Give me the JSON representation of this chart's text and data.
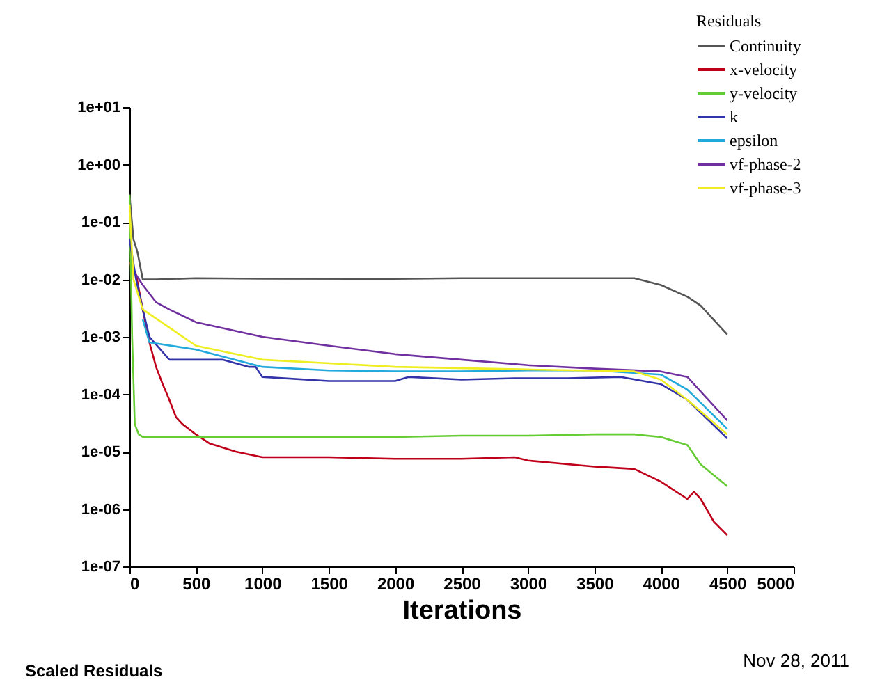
{
  "chart_data": {
    "type": "line",
    "xlabel": "Iterations",
    "legend_title": "Residuals",
    "legend": "top right",
    "log": "y",
    "grid": false,
    "line_style": "solid",
    "marker": "none",
    "xlim": [
      0,
      5000
    ],
    "xticks": [
      0,
      500,
      1000,
      1500,
      2000,
      2500,
      3000,
      3500,
      4000,
      4500,
      5000
    ],
    "ylim": [
      1e-07,
      10
    ],
    "yticks": [
      {
        "value": 10,
        "label": "1e+01"
      },
      {
        "value": 1,
        "label": "1e+00"
      },
      {
        "value": 0.1,
        "label": "1e-01"
      },
      {
        "value": 0.01,
        "label": "1e-02"
      },
      {
        "value": 0.001,
        "label": "1e-03"
      },
      {
        "value": 0.0001,
        "label": "1e-04"
      },
      {
        "value": 1e-05,
        "label": "1e-05"
      },
      {
        "value": 1e-06,
        "label": "1e-06"
      },
      {
        "value": 1e-07,
        "label": "1e-07"
      }
    ],
    "series": [
      {
        "name": "Continuity",
        "color": "#555555",
        "x": [
          0,
          30,
          60,
          100,
          200,
          500,
          1000,
          2000,
          2500,
          3000,
          3500,
          3800,
          4000,
          4200,
          4300,
          4500
        ],
        "values": [
          0.3,
          0.05,
          0.03,
          0.01,
          0.01,
          0.0105,
          0.0103,
          0.0102,
          0.0105,
          0.0105,
          0.0105,
          0.0105,
          0.008,
          0.005,
          0.0035,
          0.0011
        ]
      },
      {
        "name": "x-velocity",
        "color": "#c0001a",
        "x": [
          0,
          50,
          100,
          150,
          200,
          250,
          300,
          350,
          400,
          500,
          600,
          800,
          1000,
          1500,
          2000,
          2500,
          2900,
          3000,
          3500,
          3800,
          4000,
          4200,
          4250,
          4300,
          4400,
          4500
        ],
        "values": [
          0.02,
          0.012,
          0.003,
          0.0008,
          0.0003,
          0.00015,
          8e-05,
          4e-05,
          3e-05,
          2e-05,
          1.4e-05,
          1e-05,
          8e-06,
          8e-06,
          7.5e-06,
          7.5e-06,
          8e-06,
          7e-06,
          5.5e-06,
          5e-06,
          3e-06,
          1.5e-06,
          2e-06,
          1.5e-06,
          6e-07,
          3.5e-07
        ]
      },
      {
        "name": "y-velocity",
        "color": "#66cc33",
        "x": [
          0,
          20,
          40,
          70,
          100,
          500,
          1000,
          2000,
          2500,
          3000,
          3500,
          3800,
          4000,
          4200,
          4300,
          4500
        ],
        "values": [
          0.3,
          0.001,
          3e-05,
          2e-05,
          1.8e-05,
          1.8e-05,
          1.8e-05,
          1.8e-05,
          1.9e-05,
          1.9e-05,
          2e-05,
          2e-05,
          1.8e-05,
          1.3e-05,
          6e-06,
          2.5e-06
        ]
      },
      {
        "name": "k",
        "color": "#3333aa",
        "x": [
          0,
          50,
          100,
          150,
          300,
          700,
          900,
          950,
          1000,
          1500,
          2000,
          2100,
          2500,
          2900,
          3300,
          3700,
          4000,
          4200,
          4500
        ],
        "values": [
          0.05,
          0.01,
          0.003,
          0.001,
          0.0004,
          0.0004,
          0.0003,
          0.0003,
          0.0002,
          0.00017,
          0.00017,
          0.0002,
          0.00018,
          0.00019,
          0.00019,
          0.0002,
          0.00015,
          8e-05,
          1.7e-05
        ]
      },
      {
        "name": "epsilon",
        "color": "#22aadd",
        "x": [
          100,
          150,
          500,
          1000,
          1500,
          2000,
          2500,
          3000,
          3500,
          4000,
          4200,
          4500
        ],
        "values": [
          0.002,
          0.0008,
          0.0006,
          0.0003,
          0.00026,
          0.00025,
          0.00025,
          0.00026,
          0.00026,
          0.00022,
          0.00012,
          2.5e-05
        ]
      },
      {
        "name": "vf-phase-2",
        "color": "#7030a0",
        "x": [
          50,
          100,
          200,
          300,
          500,
          1000,
          1500,
          2000,
          2500,
          3000,
          3500,
          4000,
          4200,
          4500
        ],
        "values": [
          0.012,
          0.008,
          0.004,
          0.003,
          0.0018,
          0.001,
          0.0007,
          0.0005,
          0.0004,
          0.00032,
          0.00028,
          0.00025,
          0.0002,
          3.5e-05
        ]
      },
      {
        "name": "vf-phase-3",
        "color": "#eeee22",
        "x": [
          0,
          30,
          100,
          500,
          1000,
          2000,
          3000,
          3800,
          4000,
          4200,
          4500
        ],
        "values": [
          0.2,
          0.01,
          0.003,
          0.0007,
          0.0004,
          0.0003,
          0.00027,
          0.00025,
          0.00018,
          8e-05,
          2e-05
        ]
      }
    ],
    "annotations": [
      "Scaled Residuals",
      "Nov 28, 2011"
    ]
  }
}
